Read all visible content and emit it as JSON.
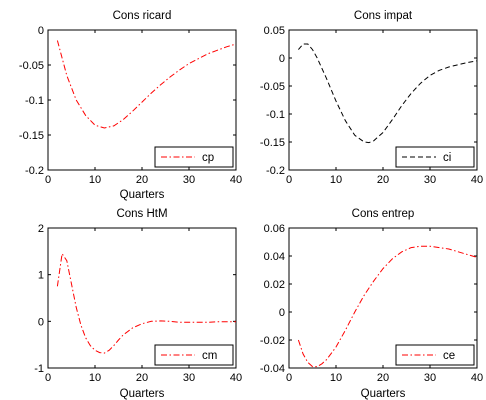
{
  "chart_data": [
    {
      "type": "line",
      "title": "Cons ricard",
      "xlabel": "Quarters",
      "ylabel": "",
      "xlim": [
        0,
        40
      ],
      "ylim": [
        -0.2,
        0
      ],
      "xticks": [
        "0",
        "10",
        "20",
        "30",
        "40"
      ],
      "yticks": [
        "-0.2",
        "-0.15",
        "-0.1",
        "-0.05",
        "0"
      ],
      "grid": false,
      "legend": "bottom-right",
      "series": [
        {
          "name": "cp",
          "color": "#ff0000",
          "dash": "dash-dot",
          "x": [
            2,
            4,
            6,
            8,
            10,
            12,
            14,
            16,
            18,
            20,
            22,
            24,
            26,
            28,
            30,
            32,
            34,
            36,
            38,
            40
          ],
          "y": [
            -0.015,
            -0.065,
            -0.1,
            -0.122,
            -0.136,
            -0.14,
            -0.137,
            -0.128,
            -0.116,
            -0.103,
            -0.09,
            -0.078,
            -0.067,
            -0.057,
            -0.048,
            -0.041,
            -0.034,
            -0.029,
            -0.024,
            -0.02
          ]
        }
      ]
    },
    {
      "type": "line",
      "title": "Cons impat",
      "xlabel": "",
      "ylabel": "",
      "xlim": [
        0,
        40
      ],
      "ylim": [
        -0.2,
        0.05
      ],
      "xticks": [
        "0",
        "10",
        "20",
        "30",
        "40"
      ],
      "yticks": [
        "-0.2",
        "-0.15",
        "-0.1",
        "-0.05",
        "0",
        "0.05"
      ],
      "grid": false,
      "legend": "bottom-right",
      "series": [
        {
          "name": "ci",
          "color": "#000000",
          "dash": "dashed",
          "x": [
            2,
            3,
            4,
            5,
            6,
            8,
            10,
            12,
            14,
            16,
            17,
            18,
            20,
            22,
            24,
            26,
            28,
            30,
            32,
            34,
            36,
            38,
            40
          ],
          "y": [
            0.015,
            0.025,
            0.025,
            0.015,
            0.0,
            -0.037,
            -0.077,
            -0.112,
            -0.138,
            -0.15,
            -0.151,
            -0.148,
            -0.133,
            -0.11,
            -0.085,
            -0.063,
            -0.045,
            -0.031,
            -0.022,
            -0.016,
            -0.012,
            -0.008,
            -0.005
          ]
        }
      ]
    },
    {
      "type": "line",
      "title": "Cons HtM",
      "xlabel": "Quarters",
      "ylabel": "",
      "xlim": [
        0,
        40
      ],
      "ylim": [
        -1,
        2
      ],
      "xticks": [
        "0",
        "10",
        "20",
        "30",
        "40"
      ],
      "yticks": [
        "-1",
        "0",
        "1",
        "2"
      ],
      "grid": false,
      "legend": "bottom-right",
      "series": [
        {
          "name": "cm",
          "color": "#ff0000",
          "dash": "dash-dot",
          "x": [
            2,
            3,
            4,
            5,
            6,
            7,
            8,
            9,
            10,
            11,
            12,
            13,
            14,
            15,
            16,
            18,
            20,
            22,
            24,
            26,
            28,
            30,
            32,
            34,
            36,
            38,
            40
          ],
          "y": [
            0.75,
            1.45,
            1.3,
            0.8,
            0.3,
            -0.08,
            -0.35,
            -0.52,
            -0.62,
            -0.67,
            -0.68,
            -0.62,
            -0.52,
            -0.4,
            -0.29,
            -0.14,
            -0.05,
            0.0,
            0.01,
            0.0,
            -0.02,
            -0.02,
            -0.02,
            -0.02,
            -0.01,
            -0.01,
            -0.01
          ]
        }
      ]
    },
    {
      "type": "line",
      "title": "Cons entrep",
      "xlabel": "Quarters",
      "ylabel": "",
      "xlim": [
        0,
        40
      ],
      "ylim": [
        -0.04,
        0.06
      ],
      "xticks": [
        "0",
        "10",
        "20",
        "30",
        "40"
      ],
      "yticks": [
        "-0.04",
        "-0.02",
        "0",
        "0.02",
        "0.04",
        "0.06"
      ],
      "grid": false,
      "legend": "bottom-right",
      "series": [
        {
          "name": "ce",
          "color": "#ff0000",
          "dash": "dash-dot",
          "x": [
            2,
            3,
            4,
            5,
            6,
            7,
            8,
            10,
            12,
            14,
            16,
            18,
            20,
            22,
            24,
            26,
            28,
            30,
            32,
            34,
            36,
            38,
            40
          ],
          "y": [
            -0.02,
            -0.03,
            -0.036,
            -0.039,
            -0.039,
            -0.037,
            -0.034,
            -0.025,
            -0.013,
            0.0,
            0.012,
            0.022,
            0.031,
            0.038,
            0.043,
            0.046,
            0.047,
            0.047,
            0.046,
            0.045,
            0.043,
            0.041,
            0.039
          ]
        }
      ]
    }
  ]
}
